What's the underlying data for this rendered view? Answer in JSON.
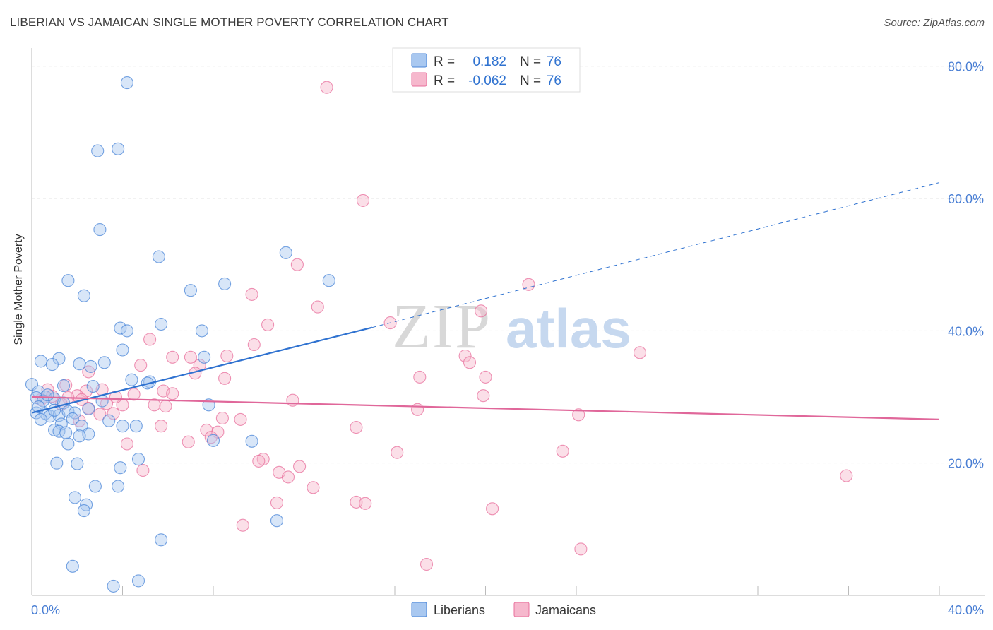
{
  "title": "LIBERIAN VS JAMAICAN SINGLE MOTHER POVERTY CORRELATION CHART",
  "source": "Source: ZipAtlas.com",
  "watermark": {
    "part1": "ZIP",
    "part2": "atlas"
  },
  "colors": {
    "blue": "#4a86d8",
    "blue_fill": "#a9c8f0",
    "blue_line": "#2f72d0",
    "pink": "#e86f9c",
    "pink_fill": "#f6b8cd",
    "pink_line": "#e0679a",
    "axis_text": "#4a7fd4"
  },
  "legend_stats": [
    {
      "r_label": "R =",
      "r_value": "0.182",
      "n_label": "N =",
      "n_value": "76"
    },
    {
      "r_label": "R =",
      "r_value": "-0.062",
      "n_label": "N =",
      "n_value": "76"
    }
  ],
  "chart_data": {
    "type": "scatter",
    "title": "LIBERIAN VS JAMAICAN SINGLE MOTHER POVERTY CORRELATION CHART",
    "xlabel": "",
    "ylabel": "Single Mother Poverty",
    "xlim": [
      0,
      40
    ],
    "ylim": [
      0,
      82
    ],
    "x_ticks": [
      {
        "value": 0,
        "label": "0.0%"
      },
      {
        "value": 40,
        "label": "40.0%"
      }
    ],
    "y_ticks": [
      {
        "value": 20,
        "label": "20.0%"
      },
      {
        "value": 40,
        "label": "40.0%"
      },
      {
        "value": 60,
        "label": "60.0%"
      },
      {
        "value": 80,
        "label": "80.0%"
      }
    ],
    "grid": true,
    "legend_position": "bottom-center",
    "series": [
      {
        "name": "Liberians",
        "color": "#4a86d8",
        "trend": {
          "x0": 0,
          "y0": 27.6,
          "x1": 15,
          "y1": 40.5,
          "dashed_to_x": 40,
          "dashed_to_y": 62.4
        },
        "points": [
          [
            4.2,
            77.5
          ],
          [
            3.8,
            67.5
          ],
          [
            2.9,
            67.2
          ],
          [
            3.0,
            55.3
          ],
          [
            5.6,
            51.2
          ],
          [
            11.2,
            51.8
          ],
          [
            1.6,
            47.6
          ],
          [
            7.0,
            46.1
          ],
          [
            8.5,
            47.1
          ],
          [
            13.1,
            47.6
          ],
          [
            2.3,
            45.3
          ],
          [
            3.9,
            40.4
          ],
          [
            4.2,
            40.0
          ],
          [
            5.7,
            41.0
          ],
          [
            7.5,
            40.0
          ],
          [
            4.0,
            37.1
          ],
          [
            7.6,
            36.0
          ],
          [
            1.2,
            35.8
          ],
          [
            0.4,
            35.4
          ],
          [
            0.9,
            34.9
          ],
          [
            2.1,
            35.0
          ],
          [
            3.2,
            35.2
          ],
          [
            2.6,
            34.6
          ],
          [
            4.4,
            32.6
          ],
          [
            5.2,
            32.3
          ],
          [
            5.1,
            32.1
          ],
          [
            1.4,
            31.7
          ],
          [
            0.0,
            31.9
          ],
          [
            0.3,
            30.8
          ],
          [
            0.6,
            30.0
          ],
          [
            0.2,
            29.9
          ],
          [
            0.5,
            29.4
          ],
          [
            1.0,
            29.7
          ],
          [
            1.4,
            29.1
          ],
          [
            3.1,
            29.4
          ],
          [
            7.8,
            28.8
          ],
          [
            2.5,
            28.2
          ],
          [
            0.2,
            27.6
          ],
          [
            0.6,
            27.5
          ],
          [
            0.8,
            27.1
          ],
          [
            1.2,
            27.2
          ],
          [
            1.6,
            27.8
          ],
          [
            1.9,
            27.6
          ],
          [
            0.4,
            26.6
          ],
          [
            1.8,
            26.7
          ],
          [
            3.4,
            26.4
          ],
          [
            1.3,
            25.9
          ],
          [
            2.2,
            25.6
          ],
          [
            4.0,
            25.6
          ],
          [
            4.6,
            25.6
          ],
          [
            1.0,
            25.0
          ],
          [
            1.2,
            24.8
          ],
          [
            2.5,
            24.4
          ],
          [
            2.1,
            24.1
          ],
          [
            8.0,
            23.4
          ],
          [
            9.7,
            23.3
          ],
          [
            1.6,
            22.9
          ],
          [
            4.7,
            20.6
          ],
          [
            1.1,
            20.0
          ],
          [
            2.0,
            19.9
          ],
          [
            3.9,
            19.3
          ],
          [
            2.8,
            16.5
          ],
          [
            3.8,
            16.5
          ],
          [
            1.9,
            14.8
          ],
          [
            2.4,
            13.7
          ],
          [
            2.3,
            12.8
          ],
          [
            10.8,
            11.3
          ],
          [
            5.7,
            8.4
          ],
          [
            1.8,
            4.4
          ],
          [
            3.6,
            1.4
          ],
          [
            4.7,
            2.2
          ],
          [
            1.0,
            28.0
          ],
          [
            0.7,
            30.3
          ],
          [
            2.7,
            31.6
          ],
          [
            0.3,
            28.5
          ],
          [
            1.5,
            24.6
          ]
        ]
      },
      {
        "name": "Jamaicans",
        "color": "#e86f9c",
        "trend": {
          "x0": 0,
          "y0": 30.0,
          "x1": 40,
          "y1": 26.6
        },
        "points": [
          [
            13.0,
            76.8
          ],
          [
            14.6,
            59.7
          ],
          [
            11.7,
            50.0
          ],
          [
            21.9,
            47.0
          ],
          [
            9.7,
            45.5
          ],
          [
            12.6,
            43.6
          ],
          [
            19.8,
            43.0
          ],
          [
            15.8,
            41.2
          ],
          [
            10.4,
            40.9
          ],
          [
            5.2,
            38.7
          ],
          [
            9.8,
            37.9
          ],
          [
            26.8,
            36.7
          ],
          [
            6.2,
            36.0
          ],
          [
            7.0,
            36.0
          ],
          [
            8.6,
            36.2
          ],
          [
            19.1,
            36.2
          ],
          [
            4.8,
            34.8
          ],
          [
            7.4,
            34.8
          ],
          [
            19.3,
            35.2
          ],
          [
            2.5,
            33.8
          ],
          [
            7.2,
            33.6
          ],
          [
            17.1,
            33.0
          ],
          [
            20.0,
            33.0
          ],
          [
            8.5,
            32.8
          ],
          [
            1.5,
            31.8
          ],
          [
            3.1,
            31.1
          ],
          [
            0.7,
            31.1
          ],
          [
            5.8,
            30.9
          ],
          [
            2.4,
            30.9
          ],
          [
            6.2,
            30.5
          ],
          [
            2.0,
            30.2
          ],
          [
            1.6,
            29.9
          ],
          [
            4.5,
            30.4
          ],
          [
            0.9,
            30.1
          ],
          [
            19.9,
            30.2
          ],
          [
            11.5,
            29.5
          ],
          [
            3.3,
            29.0
          ],
          [
            4.0,
            28.8
          ],
          [
            5.4,
            28.8
          ],
          [
            5.9,
            28.6
          ],
          [
            2.5,
            28.3
          ],
          [
            17.0,
            28.1
          ],
          [
            3.6,
            27.5
          ],
          [
            3.0,
            27.4
          ],
          [
            8.4,
            26.8
          ],
          [
            9.2,
            26.6
          ],
          [
            24.1,
            27.3
          ],
          [
            2.1,
            26.4
          ],
          [
            5.7,
            25.6
          ],
          [
            14.3,
            25.4
          ],
          [
            7.7,
            25.0
          ],
          [
            8.2,
            24.7
          ],
          [
            7.9,
            23.9
          ],
          [
            6.9,
            23.2
          ],
          [
            4.2,
            22.9
          ],
          [
            23.4,
            21.8
          ],
          [
            16.1,
            21.6
          ],
          [
            10.2,
            20.6
          ],
          [
            10.0,
            20.3
          ],
          [
            11.8,
            19.5
          ],
          [
            4.9,
            18.9
          ],
          [
            10.9,
            18.6
          ],
          [
            11.3,
            17.9
          ],
          [
            35.9,
            18.1
          ],
          [
            12.4,
            16.3
          ],
          [
            14.3,
            14.1
          ],
          [
            14.7,
            13.9
          ],
          [
            10.8,
            14.0
          ],
          [
            20.3,
            13.1
          ],
          [
            9.3,
            10.6
          ],
          [
            24.2,
            7.0
          ],
          [
            17.4,
            4.7
          ],
          [
            1.3,
            28.9
          ],
          [
            0.4,
            29.6
          ],
          [
            3.7,
            30.0
          ],
          [
            2.2,
            29.6
          ]
        ]
      }
    ]
  },
  "legend_bottom": [
    {
      "label": "Liberians"
    },
    {
      "label": "Jamaicans"
    }
  ]
}
